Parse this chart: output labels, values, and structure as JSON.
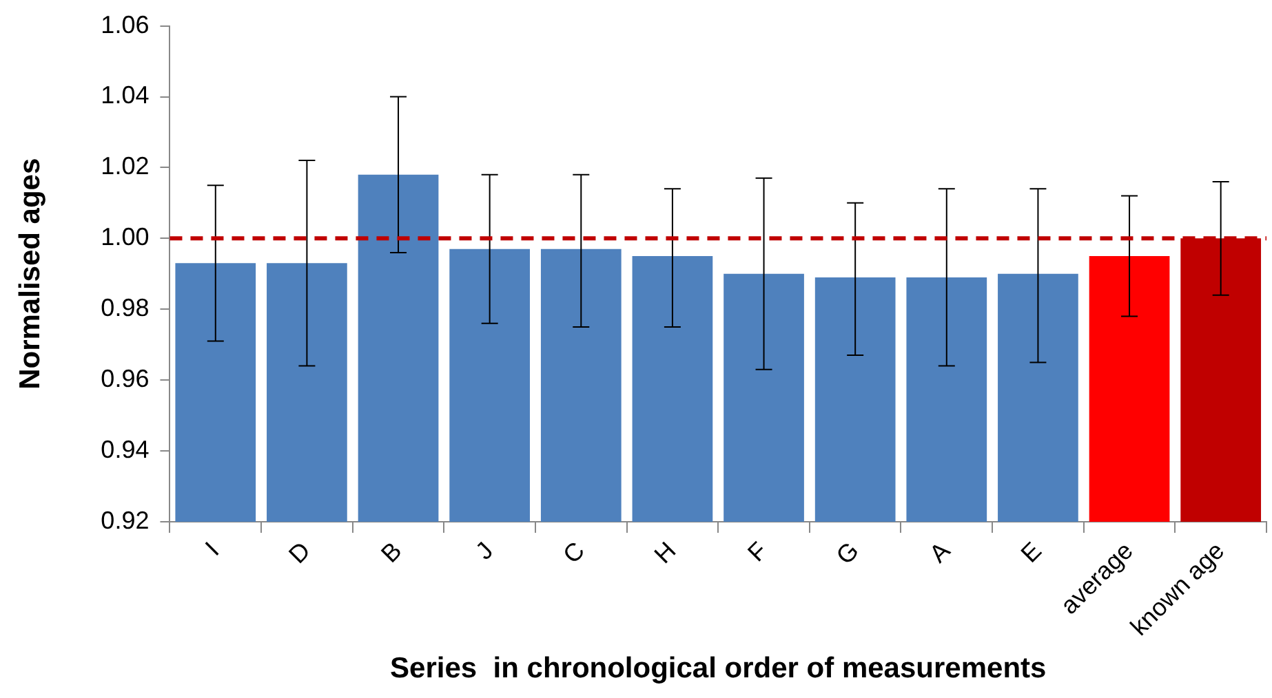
{
  "chart_data": {
    "type": "bar",
    "xlabel": "Series  in chronological order of measurements",
    "ylabel": "Normalised ages",
    "categories": [
      "I",
      "D",
      "B",
      "J",
      "C",
      "H",
      "F",
      "G",
      "A",
      "E",
      "average",
      "known age"
    ],
    "values": [
      0.993,
      0.993,
      1.018,
      0.997,
      0.997,
      0.995,
      0.99,
      0.989,
      0.989,
      0.99,
      0.995,
      1.0
    ],
    "colors": [
      "#4f81bd",
      "#4f81bd",
      "#4f81bd",
      "#4f81bd",
      "#4f81bd",
      "#4f81bd",
      "#4f81bd",
      "#4f81bd",
      "#4f81bd",
      "#4f81bd",
      "#ff0000",
      "#c00000"
    ],
    "errors": [
      [
        0.971,
        1.015
      ],
      [
        0.964,
        1.022
      ],
      [
        0.996,
        1.04
      ],
      [
        0.976,
        1.018
      ],
      [
        0.975,
        1.018
      ],
      [
        0.975,
        1.014
      ],
      [
        0.963,
        1.017
      ],
      [
        0.967,
        1.01
      ],
      [
        0.964,
        1.014
      ],
      [
        0.965,
        1.014
      ],
      [
        0.978,
        1.012
      ],
      [
        0.984,
        1.016
      ]
    ],
    "ylim": [
      0.92,
      1.06
    ],
    "yticks": [
      {
        "value": 0.92,
        "label": "0.92"
      },
      {
        "value": 0.94,
        "label": "0.94"
      },
      {
        "value": 0.96,
        "label": "0.96"
      },
      {
        "value": 0.98,
        "label": "0.98"
      },
      {
        "value": 1.0,
        "label": "1.00"
      },
      {
        "value": 1.02,
        "label": "1.02"
      },
      {
        "value": 1.04,
        "label": "1.04"
      },
      {
        "value": 1.06,
        "label": "1.06"
      }
    ],
    "ref_lines": [
      {
        "axis": "y",
        "value": 1.0,
        "color": "#c00000",
        "line_style": "dashed"
      }
    ],
    "grid": false,
    "legend": false
  }
}
